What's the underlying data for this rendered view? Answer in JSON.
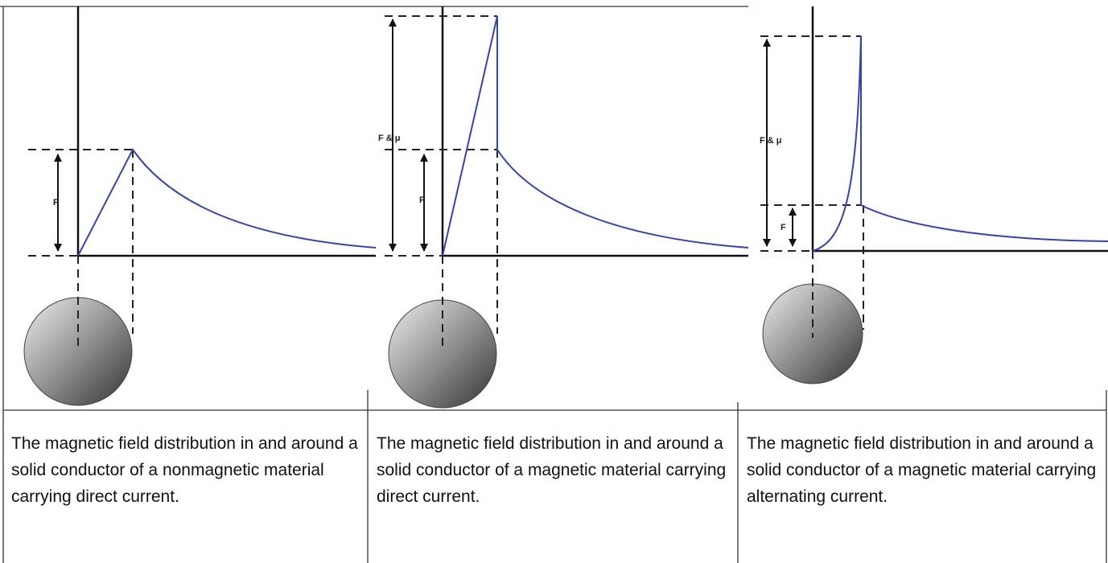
{
  "panels": [
    {
      "labels": [
        "F"
      ],
      "caption": "The magnetic field distribution in and around a solid conductor of a nonmagnetic material carrying direct current."
    },
    {
      "labels": [
        "F & μ",
        "F"
      ],
      "caption": "The magnetic field distribution in and around a solid conductor of a magnetic material carrying direct current."
    },
    {
      "labels": [
        "F & μ",
        "F"
      ],
      "caption": "The magnetic field distribution in and around a solid conductor of a magnetic material carrying alternating current."
    }
  ]
}
